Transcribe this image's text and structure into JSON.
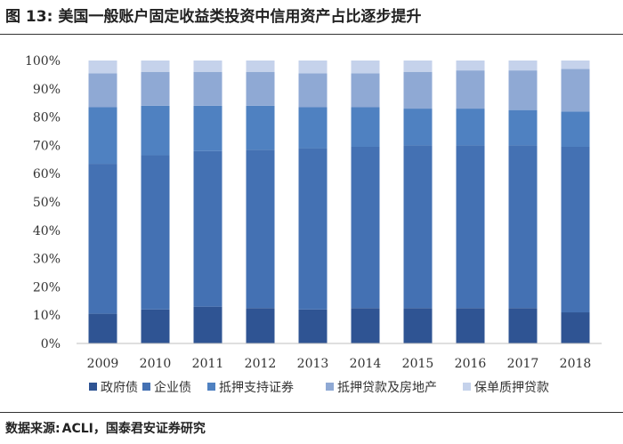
{
  "header": {
    "figure_label": "图 13:",
    "title": "美国一般账户固定收益类投资中信用资产占比逐步提升"
  },
  "source": {
    "label": "数据来源:",
    "text": "ACLI，国泰君安证券研究"
  },
  "chart_data": {
    "type": "bar",
    "stacked": true,
    "categories": [
      "2009",
      "2010",
      "2011",
      "2012",
      "2013",
      "2014",
      "2015",
      "2016",
      "2017",
      "2018"
    ],
    "series": [
      {
        "name": "政府债",
        "color": "#2f5493",
        "values": [
          10.5,
          12,
          13,
          12.5,
          12,
          12.5,
          12.5,
          12.5,
          12.5,
          11
        ]
      },
      {
        "name": "企业债",
        "color": "#4471b3",
        "values": [
          53,
          54.5,
          55,
          56,
          57,
          57,
          57.5,
          57.5,
          57.5,
          58.5
        ]
      },
      {
        "name": "抵押支持证券",
        "color": "#4f81c1",
        "values": [
          20,
          17.5,
          16,
          15.5,
          14.5,
          14,
          13,
          13,
          12.5,
          12.5
        ]
      },
      {
        "name": "抵押贷款及房地产",
        "color": "#8fa9d4",
        "values": [
          12,
          12,
          12,
          12,
          12,
          12,
          13,
          13.5,
          14,
          15
        ]
      },
      {
        "name": "保单质押贷款",
        "color": "#c5d2eb",
        "values": [
          4.5,
          4,
          4,
          4,
          4.5,
          4.5,
          4,
          3.5,
          3.5,
          3
        ]
      }
    ],
    "y_ticks": [
      "0%",
      "10%",
      "20%",
      "30%",
      "40%",
      "50%",
      "60%",
      "70%",
      "80%",
      "90%",
      "100%"
    ],
    "ylim": [
      0,
      100
    ],
    "grid": false,
    "legend_position": "bottom"
  }
}
